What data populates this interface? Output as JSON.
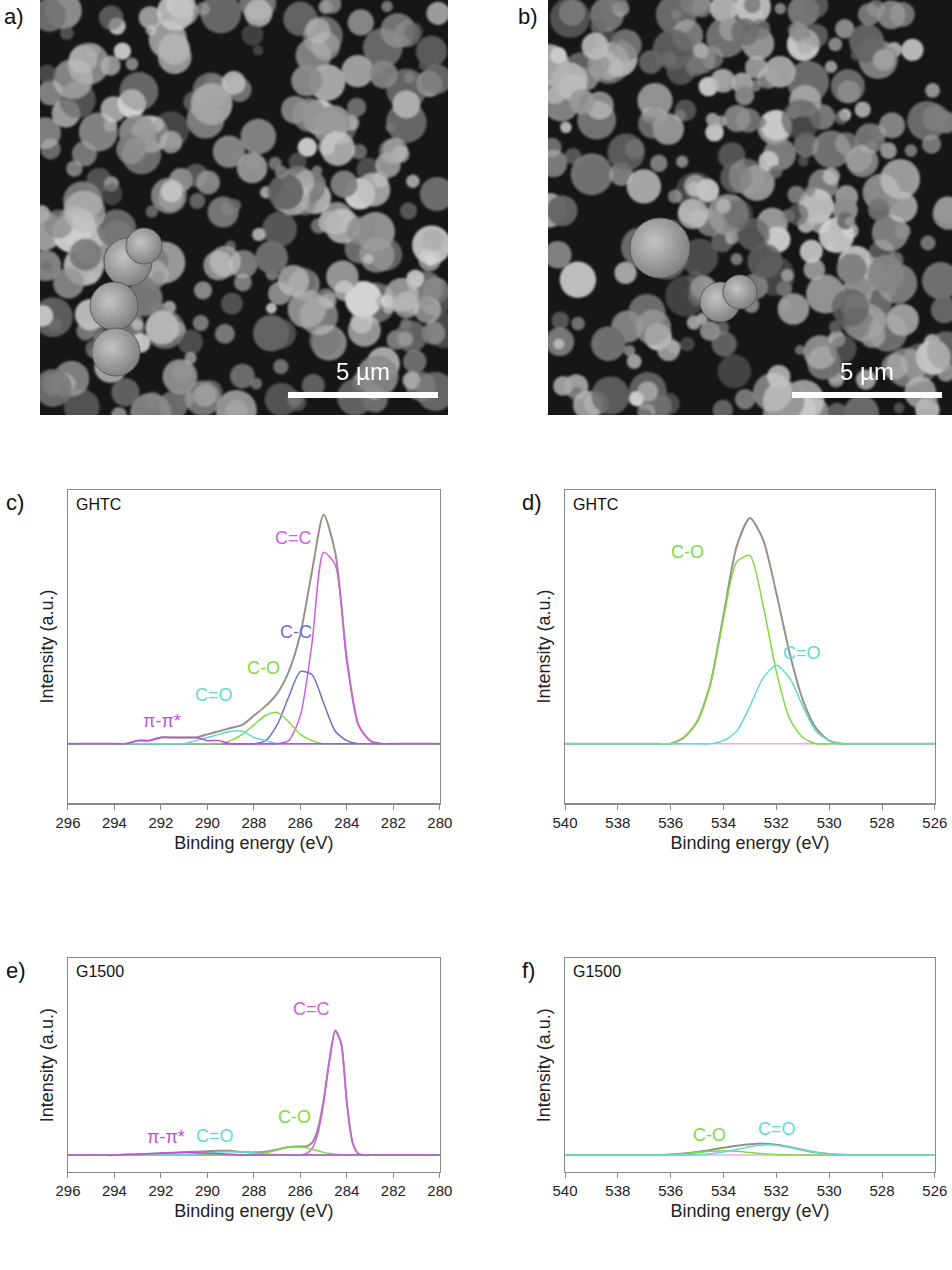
{
  "images": [
    {
      "label": "a)",
      "scale_bar": "5 µm"
    },
    {
      "label": "b)",
      "scale_bar": "5 µm"
    }
  ],
  "chart_data": [
    {
      "annotations": [
        "c)"
      ],
      "type": "line",
      "title": "GHTC",
      "x_label": "Binding energy (eV)",
      "y_label": "Intensity (a.u.)",
      "x": [
        280,
        280.5,
        281,
        281.5,
        282,
        282.5,
        283,
        283.5,
        284,
        284.5,
        285,
        285.5,
        286,
        286.5,
        287,
        287.5,
        288,
        288.5,
        289,
        289.5,
        290,
        290.5,
        291,
        291.5,
        292,
        292.5,
        293,
        293.5,
        294,
        294.5,
        295,
        295.5,
        296
      ],
      "xlim": [
        296,
        280
      ],
      "xticks": [
        296,
        294,
        292,
        290,
        288,
        286,
        284,
        282,
        280
      ],
      "ylim": [
        0,
        1
      ],
      "tick_labels": "x",
      "grid": false,
      "series": [
        {
          "color": "#9b8f8a",
          "values": [
            0.19,
            0.19,
            0.19,
            0.19,
            0.19,
            0.19,
            0.2,
            0.25,
            0.46,
            0.8,
            0.92,
            0.74,
            0.54,
            0.42,
            0.35,
            0.31,
            0.28,
            0.25,
            0.24,
            0.23,
            0.22,
            0.21,
            0.21,
            0.21,
            0.21,
            0.2,
            0.2,
            0.19,
            0.19,
            0.19,
            0.19,
            0.19,
            0.19
          ]
        },
        {
          "color": "#f4a8e8",
          "values": [
            0.19,
            0.19,
            0.19,
            0.19,
            0.19,
            0.19,
            0.19,
            0.19,
            0.19,
            0.19,
            0.19,
            0.19,
            0.19,
            0.19,
            0.19,
            0.19,
            0.19,
            0.19,
            0.19,
            0.19,
            0.19,
            0.19,
            0.19,
            0.19,
            0.19,
            0.19,
            0.19,
            0.19,
            0.19,
            0.19,
            0.19,
            0.19,
            0.19
          ]
        },
        {
          "name": "C=C",
          "color": "#d060e0",
          "values": [
            0.19,
            0.19,
            0.19,
            0.19,
            0.19,
            0.19,
            0.2,
            0.25,
            0.45,
            0.76,
            0.8,
            0.51,
            0.28,
            0.2,
            0.19,
            0.19,
            0.19,
            0.19,
            0.19,
            0.19,
            0.19,
            0.19,
            0.19,
            0.19,
            0.19,
            0.19,
            0.19,
            0.19,
            0.19,
            0.19,
            0.19,
            0.19,
            0.19
          ]
        },
        {
          "name": "C-C",
          "color": "#6f6fc8",
          "values": [
            0.19,
            0.19,
            0.19,
            0.19,
            0.19,
            0.19,
            0.19,
            0.19,
            0.2,
            0.23,
            0.32,
            0.41,
            0.42,
            0.34,
            0.25,
            0.2,
            0.19,
            0.19,
            0.19,
            0.19,
            0.19,
            0.19,
            0.19,
            0.19,
            0.19,
            0.19,
            0.19,
            0.19,
            0.19,
            0.19,
            0.19,
            0.19,
            0.19
          ]
        },
        {
          "name": "C-O",
          "color": "#7ddc3c",
          "values": [
            0.19,
            0.19,
            0.19,
            0.19,
            0.19,
            0.19,
            0.19,
            0.19,
            0.19,
            0.19,
            0.19,
            0.2,
            0.22,
            0.26,
            0.29,
            0.28,
            0.25,
            0.22,
            0.2,
            0.19,
            0.19,
            0.19,
            0.19,
            0.19,
            0.19,
            0.19,
            0.19,
            0.19,
            0.19,
            0.19,
            0.19,
            0.19,
            0.19
          ]
        },
        {
          "name": "C=O",
          "color": "#5fdcd2",
          "values": [
            0.19,
            0.19,
            0.19,
            0.19,
            0.19,
            0.19,
            0.19,
            0.19,
            0.19,
            0.19,
            0.19,
            0.19,
            0.19,
            0.19,
            0.19,
            0.2,
            0.21,
            0.23,
            0.23,
            0.22,
            0.21,
            0.2,
            0.19,
            0.19,
            0.19,
            0.19,
            0.19,
            0.19,
            0.19,
            0.19,
            0.19,
            0.19,
            0.19
          ]
        },
        {
          "name": "π-π*",
          "color": "#c050d8",
          "values": [
            0.19,
            0.19,
            0.19,
            0.19,
            0.19,
            0.19,
            0.19,
            0.19,
            0.19,
            0.19,
            0.19,
            0.19,
            0.19,
            0.19,
            0.19,
            0.19,
            0.19,
            0.19,
            0.19,
            0.2,
            0.2,
            0.21,
            0.21,
            0.21,
            0.21,
            0.2,
            0.2,
            0.19,
            0.19,
            0.19,
            0.19,
            0.19,
            0.19
          ]
        }
      ]
    },
    {
      "annotations": [
        "d)"
      ],
      "type": "line",
      "title": "GHTC",
      "x_label": "Binding energy (eV)",
      "y_label": "Intensity (a.u.)",
      "x": [
        526,
        526.5,
        527,
        527.5,
        528,
        528.5,
        529,
        529.5,
        530,
        530.5,
        531,
        531.5,
        532,
        532.5,
        533,
        533.5,
        534,
        534.5,
        535,
        535.5,
        536,
        536.5,
        537,
        537.5,
        538,
        538.5,
        539,
        539.5,
        540
      ],
      "xlim": [
        540,
        526
      ],
      "xticks": [
        540,
        538,
        536,
        534,
        532,
        530,
        528,
        526
      ],
      "ylim": [
        0,
        1
      ],
      "tick_labels": "x",
      "grid": false,
      "series": [
        {
          "color": "#9b8f8a",
          "values": [
            0.19,
            0.19,
            0.19,
            0.19,
            0.19,
            0.19,
            0.19,
            0.19,
            0.2,
            0.24,
            0.33,
            0.48,
            0.67,
            0.84,
            0.91,
            0.82,
            0.6,
            0.38,
            0.26,
            0.21,
            0.19,
            0.19,
            0.19,
            0.19,
            0.19,
            0.19,
            0.19,
            0.19,
            0.19
          ]
        },
        {
          "color": "#f4a8e8",
          "values": [
            0.19,
            0.19,
            0.19,
            0.19,
            0.19,
            0.19,
            0.19,
            0.19,
            0.19,
            0.19,
            0.19,
            0.19,
            0.19,
            0.19,
            0.19,
            0.19,
            0.19,
            0.19,
            0.19,
            0.19,
            0.19,
            0.19,
            0.19,
            0.19,
            0.19,
            0.19,
            0.19,
            0.19,
            0.19
          ]
        },
        {
          "name": "C-O",
          "color": "#7ddc3c",
          "values": [
            0.19,
            0.19,
            0.19,
            0.19,
            0.19,
            0.19,
            0.19,
            0.19,
            0.19,
            0.19,
            0.21,
            0.27,
            0.42,
            0.63,
            0.79,
            0.77,
            0.59,
            0.38,
            0.26,
            0.21,
            0.19,
            0.19,
            0.19,
            0.19,
            0.19,
            0.19,
            0.19,
            0.19,
            0.19
          ]
        },
        {
          "name": "C=O",
          "color": "#5fdcd2",
          "values": [
            0.19,
            0.19,
            0.19,
            0.19,
            0.19,
            0.19,
            0.19,
            0.19,
            0.2,
            0.23,
            0.31,
            0.4,
            0.44,
            0.4,
            0.31,
            0.23,
            0.2,
            0.19,
            0.19,
            0.19,
            0.19,
            0.19,
            0.19,
            0.19,
            0.19,
            0.19,
            0.19,
            0.19,
            0.19
          ]
        }
      ]
    },
    {
      "annotations": [
        "e)"
      ],
      "type": "line",
      "title": "G1500",
      "x_label": "Binding energy (eV)",
      "y_label": "Intensity (a.u.)",
      "x": [
        280,
        280.5,
        281,
        281.5,
        282,
        282.5,
        283,
        283.25,
        283.5,
        283.75,
        284,
        284.25,
        284.5,
        284.75,
        285,
        285.25,
        285.5,
        285.75,
        286,
        286.5,
        287,
        287.5,
        288,
        288.5,
        289,
        289.5,
        290,
        290.5,
        291,
        291.5,
        292,
        292.5,
        293,
        293.5,
        294,
        294.5,
        295,
        295.5,
        296
      ],
      "xlim": [
        296,
        280
      ],
      "xticks": [
        296,
        294,
        292,
        290,
        288,
        286,
        284,
        282,
        280
      ],
      "ylim": [
        0,
        1.25
      ],
      "tick_labels": "x",
      "grid": false,
      "series": [
        {
          "color": "#9b8f8a",
          "values": [
            0.1,
            0.1,
            0.1,
            0.1,
            0.1,
            0.1,
            0.1,
            0.1,
            0.108,
            0.171,
            0.405,
            0.756,
            0.827,
            0.657,
            0.42,
            0.25,
            0.171,
            0.151,
            0.15,
            0.147,
            0.133,
            0.12,
            0.116,
            0.118,
            0.125,
            0.126,
            0.123,
            0.12,
            0.118,
            0.114,
            0.111,
            0.108,
            0.105,
            0.103,
            0.1,
            0.1,
            0.1,
            0.1,
            0.1
          ]
        },
        {
          "color": "#f4a8e8",
          "values": [
            0.1,
            0.1,
            0.1,
            0.1,
            0.1,
            0.1,
            0.1,
            0.1,
            0.1,
            0.1,
            0.1,
            0.1,
            0.1,
            0.1,
            0.1,
            0.1,
            0.1,
            0.1,
            0.1,
            0.1,
            0.1,
            0.1,
            0.1,
            0.1,
            0.1,
            0.1,
            0.1,
            0.1,
            0.1,
            0.1,
            0.1,
            0.1,
            0.1,
            0.1,
            0.1,
            0.1,
            0.1,
            0.1,
            0.1
          ]
        },
        {
          "name": "C=C",
          "color": "#d060e0",
          "values": [
            0.1,
            0.1,
            0.1,
            0.1,
            0.1,
            0.1,
            0.1,
            0.1,
            0.108,
            0.171,
            0.404,
            0.753,
            0.822,
            0.647,
            0.404,
            0.225,
            0.137,
            0.108,
            0.101,
            0.1,
            0.1,
            0.1,
            0.1,
            0.1,
            0.1,
            0.1,
            0.1,
            0.1,
            0.1,
            0.1,
            0.1,
            0.1,
            0.1,
            0.1,
            0.1,
            0.1,
            0.1,
            0.1,
            0.1
          ]
        },
        {
          "name": "C-O",
          "color": "#7ddc3c",
          "values": [
            0.1,
            0.1,
            0.1,
            0.1,
            0.1,
            0.1,
            0.1,
            0.1,
            0.1,
            0.1,
            0.1,
            0.103,
            0.105,
            0.11,
            0.116,
            0.125,
            0.134,
            0.143,
            0.148,
            0.147,
            0.13,
            0.113,
            0.104,
            0.1,
            0.1,
            0.1,
            0.1,
            0.1,
            0.1,
            0.1,
            0.1,
            0.1,
            0.1,
            0.1,
            0.1,
            0.1,
            0.1,
            0.1,
            0.1
          ]
        },
        {
          "name": "C=O",
          "color": "#5fdcd2",
          "values": [
            0.1,
            0.1,
            0.1,
            0.1,
            0.1,
            0.1,
            0.1,
            0.1,
            0.1,
            0.1,
            0.1,
            0.1,
            0.1,
            0.1,
            0.1,
            0.1,
            0.1,
            0.1,
            0.1,
            0.1,
            0.103,
            0.107,
            0.112,
            0.118,
            0.12,
            0.118,
            0.112,
            0.107,
            0.103,
            0.1,
            0.1,
            0.1,
            0.1,
            0.1,
            0.1,
            0.1,
            0.1,
            0.1,
            0.1
          ]
        },
        {
          "name": "π-π*",
          "color": "#c050d8",
          "values": [
            0.1,
            0.1,
            0.1,
            0.1,
            0.1,
            0.1,
            0.1,
            0.1,
            0.1,
            0.1,
            0.1,
            0.1,
            0.1,
            0.1,
            0.1,
            0.1,
            0.1,
            0.1,
            0.1,
            0.1,
            0.1,
            0.1,
            0.1,
            0.1,
            0.105,
            0.108,
            0.111,
            0.114,
            0.115,
            0.114,
            0.111,
            0.108,
            0.105,
            0.103,
            0.1,
            0.1,
            0.1,
            0.1,
            0.1
          ]
        }
      ]
    },
    {
      "annotations": [
        "f)"
      ],
      "type": "line",
      "title": "G1500",
      "x_label": "Binding energy (eV)",
      "y_label": "Intensity (a.u.)",
      "x": [
        526,
        526.5,
        527,
        527.5,
        528,
        528.5,
        529,
        529.5,
        530,
        530.5,
        531,
        531.5,
        532,
        532.5,
        533,
        533.5,
        534,
        534.5,
        535,
        535.5,
        536,
        536.5,
        537,
        537.5,
        538,
        538.5,
        539,
        539.5,
        540
      ],
      "xlim": [
        540,
        526
      ],
      "xticks": [
        540,
        538,
        536,
        534,
        532,
        530,
        528,
        526
      ],
      "ylim": [
        0,
        1.25
      ],
      "tick_labels": "x",
      "grid": false,
      "series": [
        {
          "color": "#9b8f8a",
          "values": [
            0.1,
            0.1,
            0.1,
            0.1,
            0.1,
            0.1,
            0.101,
            0.102,
            0.107,
            0.116,
            0.13,
            0.147,
            0.161,
            0.167,
            0.164,
            0.155,
            0.143,
            0.13,
            0.118,
            0.109,
            0.103,
            0.101,
            0.1,
            0.1,
            0.1,
            0.1,
            0.1,
            0.1,
            0.1
          ]
        },
        {
          "color": "#f4a8e8",
          "values": [
            0.1,
            0.1,
            0.1,
            0.1,
            0.1,
            0.1,
            0.1,
            0.1,
            0.1,
            0.1,
            0.1,
            0.1,
            0.1,
            0.1,
            0.1,
            0.1,
            0.1,
            0.1,
            0.1,
            0.1,
            0.1,
            0.1,
            0.1,
            0.1,
            0.1,
            0.1,
            0.1,
            0.1,
            0.1
          ]
        },
        {
          "name": "C-O",
          "color": "#7ddc3c",
          "values": [
            0.1,
            0.1,
            0.1,
            0.1,
            0.1,
            0.1,
            0.1,
            0.1,
            0.1,
            0.1,
            0.1,
            0.101,
            0.103,
            0.108,
            0.115,
            0.122,
            0.125,
            0.122,
            0.115,
            0.108,
            0.103,
            0.101,
            0.1,
            0.1,
            0.1,
            0.1,
            0.1,
            0.1,
            0.1
          ]
        },
        {
          "name": "C=O",
          "color": "#5fdcd2",
          "values": [
            0.1,
            0.1,
            0.1,
            0.1,
            0.1,
            0.1,
            0.101,
            0.102,
            0.107,
            0.116,
            0.13,
            0.146,
            0.158,
            0.159,
            0.149,
            0.133,
            0.118,
            0.108,
            0.103,
            0.101,
            0.1,
            0.1,
            0.1,
            0.1,
            0.1,
            0.1,
            0.1,
            0.1,
            0.1
          ]
        }
      ]
    }
  ]
}
